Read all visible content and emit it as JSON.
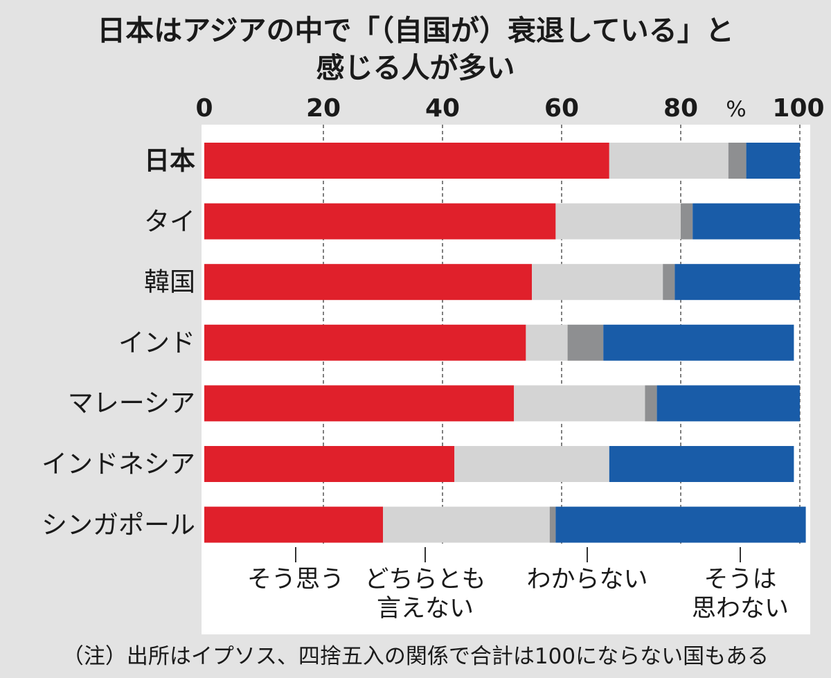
{
  "title": {
    "line1": "日本はアジアの中で「（自国が）衰退している」と",
    "line2": "感じる人が多い"
  },
  "axis": {
    "ticks": [
      "0",
      "20",
      "40",
      "60",
      "80",
      "100"
    ],
    "unit": "%"
  },
  "chart_data": {
    "type": "bar",
    "orientation": "horizontal",
    "stacked": true,
    "xlim": [
      0,
      100
    ],
    "categories": [
      "日本",
      "タイ",
      "韓国",
      "インド",
      "マレーシア",
      "インドネシア",
      "シンガポール"
    ],
    "series": [
      {
        "name": "そう思う",
        "values": [
          68,
          59,
          55,
          54,
          52,
          42,
          30
        ]
      },
      {
        "name": "どちらとも言えない",
        "values": [
          20,
          21,
          22,
          7,
          22,
          26,
          28
        ]
      },
      {
        "name": "わからない",
        "values": [
          3,
          2,
          2,
          6,
          2,
          0,
          1
        ]
      },
      {
        "name": "そうは思わない",
        "values": [
          9,
          18,
          21,
          32,
          24,
          31,
          42
        ]
      }
    ],
    "colors": [
      "#e0202b",
      "#d4d4d4",
      "#8e8f91",
      "#195ca8"
    ],
    "grid": "dashed vertical at 20, 40, 60, 80",
    "legend_position": "bottom"
  },
  "legend": {
    "labels": [
      "そう思う",
      "どちらとも\n言えない",
      "わからない",
      "そうは\n思わない"
    ]
  },
  "note": "（注）出所はイプソス、四捨五入の関係で合計は100にならない国もある"
}
